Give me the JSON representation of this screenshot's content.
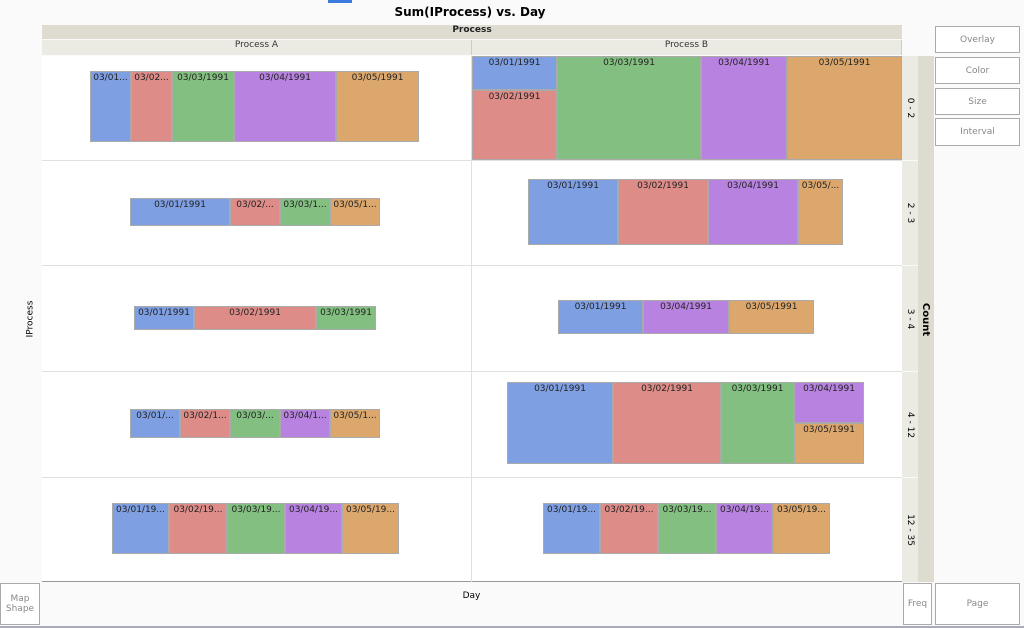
{
  "title": "Sum(IProcess) vs. Day",
  "group_x": {
    "title": "Process",
    "levels": [
      "Process A",
      "Process B"
    ]
  },
  "group_y": {
    "title": "Count",
    "levels": [
      "0 - 2",
      "2 - 3",
      "3 - 4",
      "4 - 12",
      "12 - 35"
    ]
  },
  "y_zone": "IProcess",
  "x_zone": "Day",
  "buttons": {
    "overlay": "Overlay",
    "color": "Color",
    "size": "Size",
    "interval": "Interval",
    "map_shape": "Map Shape",
    "freq": "Freq",
    "page": "Page"
  },
  "day_colors": {
    "03/01/1991": "#7f9fe3",
    "03/02/1991": "#dd8c88",
    "03/03/1991": "#83bf80",
    "03/04/1991": "#b883e0",
    "03/05/1991": "#dba76d"
  },
  "cells": [
    {
      "process": "Process A",
      "count": "0 - 2",
      "tiles": [
        {
          "day": "03/01/1991",
          "label": "03/01..."
        },
        {
          "day": "03/02/1991",
          "label": "03/02..."
        },
        {
          "day": "03/03/1991",
          "label": "03/03/1991"
        },
        {
          "day": "03/04/1991",
          "label": "03/04/1991"
        },
        {
          "day": "03/05/1991",
          "label": "03/05/1991"
        }
      ]
    },
    {
      "process": "Process B",
      "count": "0 - 2",
      "tiles": [
        {
          "day": "03/01/1991",
          "label": "03/01/1991"
        },
        {
          "day": "03/02/1991",
          "label": "03/02/1991"
        },
        {
          "day": "03/03/1991",
          "label": "03/03/1991"
        },
        {
          "day": "03/04/1991",
          "label": "03/04/1991"
        },
        {
          "day": "03/05/1991",
          "label": "03/05/1991"
        }
      ]
    },
    {
      "process": "Process A",
      "count": "2 - 3",
      "tiles": [
        {
          "day": "03/01/1991",
          "label": "03/01/1991"
        },
        {
          "day": "03/02/1991",
          "label": "03/02/..."
        },
        {
          "day": "03/03/1991",
          "label": "03/03/1..."
        },
        {
          "day": "03/05/1991",
          "label": "03/05/1..."
        }
      ]
    },
    {
      "process": "Process B",
      "count": "2 - 3",
      "tiles": [
        {
          "day": "03/01/1991",
          "label": "03/01/1991"
        },
        {
          "day": "03/02/1991",
          "label": "03/02/1991"
        },
        {
          "day": "03/04/1991",
          "label": "03/04/1991"
        },
        {
          "day": "03/05/1991",
          "label": "03/05/..."
        }
      ]
    },
    {
      "process": "Process A",
      "count": "3 - 4",
      "tiles": [
        {
          "day": "03/01/1991",
          "label": "03/01/1991"
        },
        {
          "day": "03/02/1991",
          "label": "03/02/1991"
        },
        {
          "day": "03/03/1991",
          "label": "03/03/1991"
        }
      ]
    },
    {
      "process": "Process B",
      "count": "3 - 4",
      "tiles": [
        {
          "day": "03/01/1991",
          "label": "03/01/1991"
        },
        {
          "day": "03/04/1991",
          "label": "03/04/1991"
        },
        {
          "day": "03/05/1991",
          "label": "03/05/1991"
        }
      ]
    },
    {
      "process": "Process A",
      "count": "4 - 12",
      "tiles": [
        {
          "day": "03/01/1991",
          "label": "03/01/..."
        },
        {
          "day": "03/02/1991",
          "label": "03/02/1..."
        },
        {
          "day": "03/03/1991",
          "label": "03/03/..."
        },
        {
          "day": "03/04/1991",
          "label": "03/04/1..."
        },
        {
          "day": "03/05/1991",
          "label": "03/05/1..."
        }
      ]
    },
    {
      "process": "Process B",
      "count": "4 - 12",
      "tiles": [
        {
          "day": "03/01/1991",
          "label": "03/01/1991"
        },
        {
          "day": "03/02/1991",
          "label": "03/02/1991"
        },
        {
          "day": "03/03/1991",
          "label": "03/03/1991"
        },
        {
          "day": "03/04/1991",
          "label": "03/04/1991"
        },
        {
          "day": "03/05/1991",
          "label": "03/05/1991"
        }
      ]
    },
    {
      "process": "Process A",
      "count": "12 - 35",
      "tiles": [
        {
          "day": "03/01/1991",
          "label": "03/01/19..."
        },
        {
          "day": "03/02/1991",
          "label": "03/02/19..."
        },
        {
          "day": "03/03/1991",
          "label": "03/03/19..."
        },
        {
          "day": "03/04/1991",
          "label": "03/04/19..."
        },
        {
          "day": "03/05/1991",
          "label": "03/05/19..."
        }
      ]
    },
    {
      "process": "Process B",
      "count": "12 - 35",
      "tiles": [
        {
          "day": "03/01/1991",
          "label": "03/01/19..."
        },
        {
          "day": "03/02/1991",
          "label": "03/02/19..."
        },
        {
          "day": "03/03/1991",
          "label": "03/03/19..."
        },
        {
          "day": "03/04/1991",
          "label": "03/04/19..."
        },
        {
          "day": "03/05/1991",
          "label": "03/05/19..."
        }
      ]
    }
  ]
}
